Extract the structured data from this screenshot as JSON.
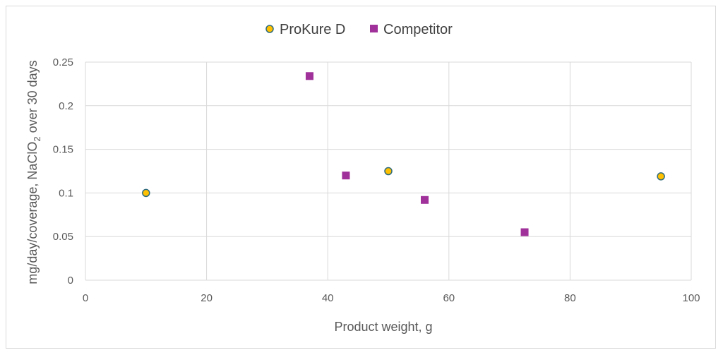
{
  "chart_data": {
    "type": "scatter",
    "title": "",
    "xlabel": "Product weight, g",
    "ylabel": {
      "before": "mg/day/coverage, NaClO",
      "subscript": "2",
      "after": " over 30 days"
    },
    "xlim": [
      0,
      100
    ],
    "ylim": [
      0,
      0.25
    ],
    "x_ticks": [
      "0",
      "20",
      "40",
      "60",
      "80",
      "100"
    ],
    "y_ticks": [
      "0",
      "0.05",
      "0.1",
      "0.15",
      "0.2",
      "0.25"
    ],
    "grid": true,
    "legend_position": "top",
    "series": [
      {
        "name": "ProKure D",
        "marker": "circle",
        "color": "#FFC000",
        "edge_color": "#2F6B7C",
        "points": [
          {
            "x": 10,
            "y": 0.1
          },
          {
            "x": 50,
            "y": 0.125
          },
          {
            "x": 95,
            "y": 0.119
          }
        ]
      },
      {
        "name": "Competitor",
        "marker": "square",
        "color": "#A0309A",
        "points": [
          {
            "x": 37,
            "y": 0.234
          },
          {
            "x": 43,
            "y": 0.12
          },
          {
            "x": 56,
            "y": 0.092
          },
          {
            "x": 72.5,
            "y": 0.055
          }
        ]
      }
    ]
  }
}
